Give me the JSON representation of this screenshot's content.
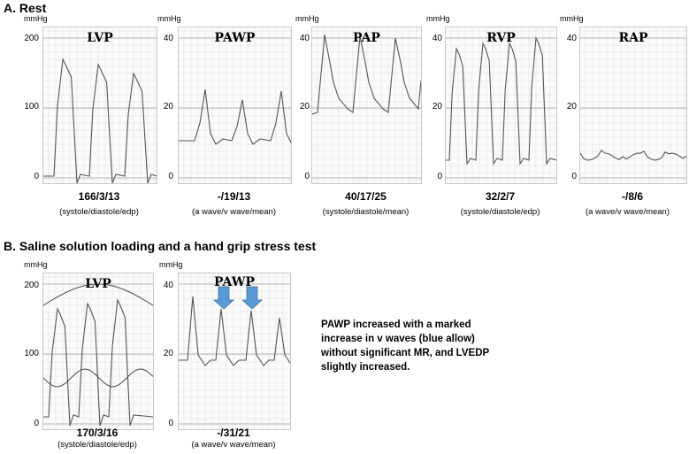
{
  "sections": {
    "rest": "A. Rest",
    "loading": "B. Saline solution loading and a hand grip stress test"
  },
  "unit": "mmHg",
  "rest_panels": [
    {
      "label": "LVP",
      "ticks": [
        "200",
        "100",
        "0"
      ],
      "value": "166/3/13",
      "desc": "(systole/diastole/edp)"
    },
    {
      "label": "PAWP",
      "ticks": [
        "40",
        "20",
        "0"
      ],
      "value": "-/19/13",
      "desc": "(a wave/v wave/mean)"
    },
    {
      "label": "PAP",
      "ticks": [
        "40",
        "20",
        "0"
      ],
      "value": "40/17/25",
      "desc": "(systole/diastole/mean)"
    },
    {
      "label": "RVP",
      "ticks": [
        "40",
        "20",
        "0"
      ],
      "value": "32/2/7",
      "desc": "(systole/diastole/edp)"
    },
    {
      "label": "RAP",
      "ticks": [
        "40",
        "20",
        "0"
      ],
      "value": "-/8/6",
      "desc": "(a wave/v wave/mean)"
    }
  ],
  "loading_panels": [
    {
      "label": "LVP",
      "ticks": [
        "200",
        "100",
        "0"
      ],
      "value": "170/3/16",
      "desc": "(systole/diastole/edp)"
    },
    {
      "label": "PAWP",
      "ticks": [
        "40",
        "20",
        "0"
      ],
      "value": "-/31/21",
      "desc": "(a wave/v wave/mean)"
    }
  ],
  "note": "PAWP increased with a marked increase in v waves (blue allow) without significant MR, and LVEDP slightly increased.",
  "colors": {
    "trace": "#555555",
    "grid": "#e2e2e2",
    "gridMajor": "#b5b5b5",
    "arrow": "#5b9bd5"
  }
}
